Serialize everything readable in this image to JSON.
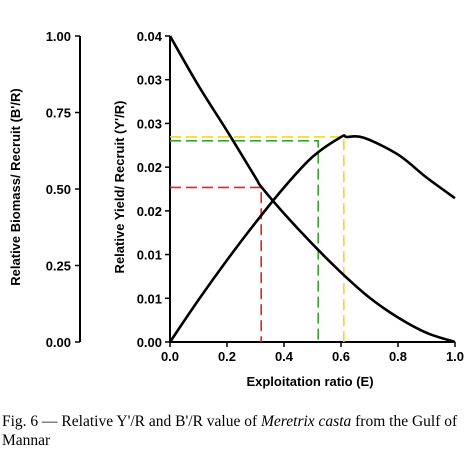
{
  "caption": {
    "prefix": "Fig. 6 — Relative Y'/R and B'/R value of ",
    "species": "Meretrix casta",
    "suffix": " from the Gulf of Mannar"
  },
  "chart_data": {
    "type": "line",
    "xlabel": "Exploitation ratio (E)",
    "y2label": "Relative Yield/ Recruit (Y'/R)",
    "y1label": "Relative Biomass/ Recruit (B'/R)",
    "xlim": [
      0,
      1
    ],
    "y2lim": [
      0,
      0.04
    ],
    "y1lim": [
      0,
      1
    ],
    "x_ticks": [
      "0.0",
      "0.2",
      "0.4",
      "0.6",
      "0.8",
      "1.0"
    ],
    "y2_ticks": [
      "0.00",
      "0.01",
      "0.01",
      "0.02",
      "0.02",
      "0.03",
      "0.03",
      "0.04"
    ],
    "y1_ticks": [
      "0.00",
      "0.25",
      "0.50",
      "0.75",
      "1.00"
    ],
    "y1_highlight_tick": "0.50",
    "grid": false,
    "series": [
      {
        "axis": "y2",
        "x": [
          0,
          0.1,
          0.2,
          0.3,
          0.4,
          0.5,
          0.6,
          0.62,
          0.68,
          0.8,
          0.9,
          1.0
        ],
        "values": [
          0,
          0.0055,
          0.0107,
          0.0156,
          0.0202,
          0.0242,
          0.0268,
          0.0268,
          0.0267,
          0.0245,
          0.0215,
          0.0188
        ]
      },
      {
        "axis": "y2",
        "x": [
          0,
          0.1,
          0.2,
          0.3,
          0.32,
          0.4,
          0.5,
          0.6,
          0.7,
          0.8,
          0.9,
          1.0
        ],
        "values": [
          0.04,
          0.0335,
          0.0276,
          0.0215,
          0.0203,
          0.0168,
          0.0128,
          0.0091,
          0.0058,
          0.0032,
          0.0012,
          0
        ]
      }
    ],
    "reference_lines": [
      {
        "color": "#e8231c",
        "x": 0.32,
        "y": 0.0202
      },
      {
        "color": "#3aa42c",
        "x": 0.52,
        "y": 0.0263
      },
      {
        "color": "#f0d62a",
        "x": 0.61,
        "y": 0.0268
      }
    ]
  }
}
